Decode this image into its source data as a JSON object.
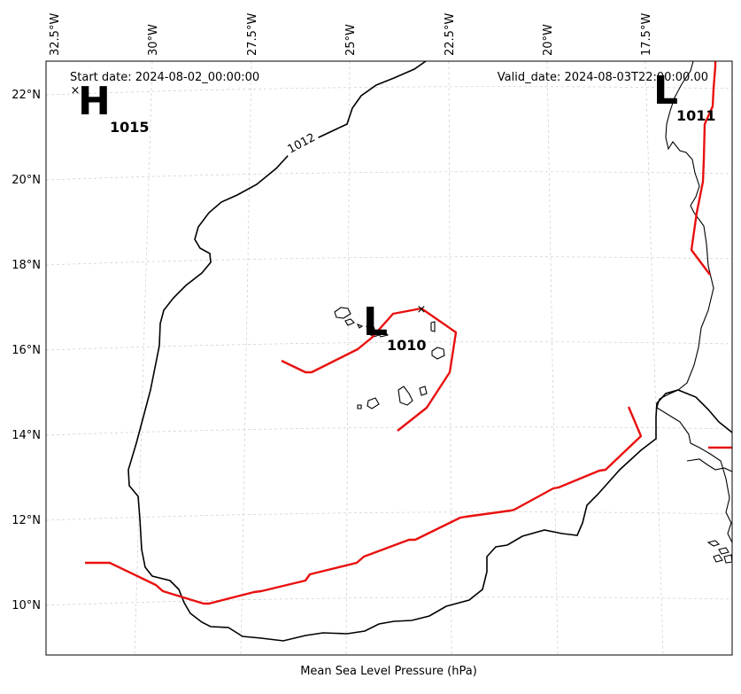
{
  "map": {
    "start_date": "Start date: 2024-08-02_00:00:00",
    "valid_date": "Valid_date: 2024-08-03T22:00:00.00",
    "footer_label": "Mean Sea Level Pressure (hPa)",
    "lon_ticks": [
      "32.5°W",
      "30°W",
      "27.5°W",
      "25°W",
      "22.5°W",
      "20°W",
      "17.5°W"
    ],
    "lat_ticks": [
      "22°N",
      "20°N",
      "18°N",
      "16°N",
      "14°N",
      "12°N",
      "10°N"
    ],
    "isobar_label": "1012",
    "systems": [
      {
        "type": "H",
        "pressure": "1015"
      },
      {
        "type": "L",
        "pressure": "1010"
      },
      {
        "type": "L",
        "pressure": "1011"
      }
    ],
    "colors": {
      "front": "#e8100f",
      "isobar": "#000000",
      "grid": "#cccccc"
    }
  }
}
